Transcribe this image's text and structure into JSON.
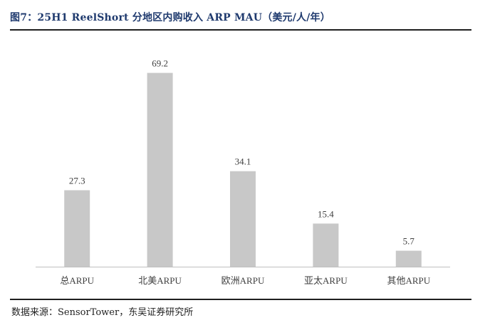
{
  "header": {
    "title": "图7：25H1 ReelShort 分地区内购收入 ARP MAU（美元/人/年）"
  },
  "footer": {
    "source": "数据来源：SensorTower，东吴证券研究所"
  },
  "colors": {
    "bar": "#c8c8c8",
    "axis": "#bfbfbf",
    "title": "#1f3a6e",
    "text": "#404040"
  },
  "chart_data": {
    "type": "bar",
    "categories": [
      "总ARPU",
      "北美ARPU",
      "欧洲ARPU",
      "亚太ARPU",
      "其他ARPU"
    ],
    "values": [
      27.3,
      69.2,
      34.1,
      15.4,
      5.7
    ],
    "title": "",
    "xlabel": "",
    "ylabel": "",
    "ylim": [
      0,
      80
    ],
    "grid": false,
    "legend": "none",
    "data_labels": true
  }
}
